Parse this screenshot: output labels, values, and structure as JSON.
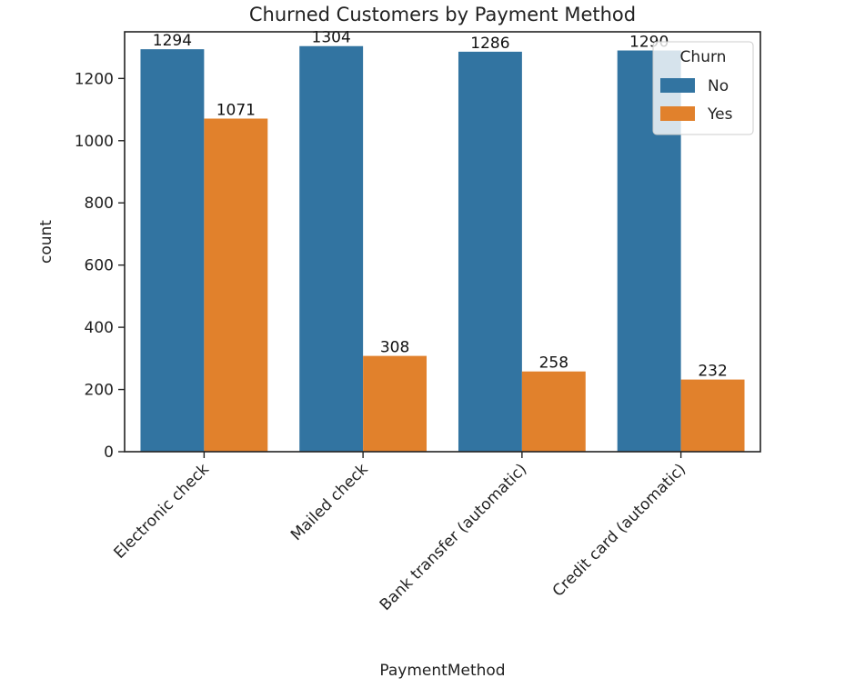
{
  "chart_data": {
    "type": "bar",
    "title": "Churned Customers by Payment Method",
    "xlabel": "PaymentMethod",
    "ylabel": "count",
    "categories": [
      "Electronic check",
      "Mailed check",
      "Bank transfer (automatic)",
      "Credit card (automatic)"
    ],
    "series": [
      {
        "name": "No",
        "values": [
          1294,
          1304,
          1286,
          1290
        ],
        "color": "#3274a1"
      },
      {
        "name": "Yes",
        "values": [
          1071,
          308,
          258,
          232
        ],
        "color": "#e1812c"
      }
    ],
    "ylim": [
      0,
      1350
    ],
    "yticks": [
      0,
      200,
      400,
      600,
      800,
      1000,
      1200
    ],
    "legend": {
      "title": "Churn",
      "position": "top-right"
    },
    "grid": false
  }
}
